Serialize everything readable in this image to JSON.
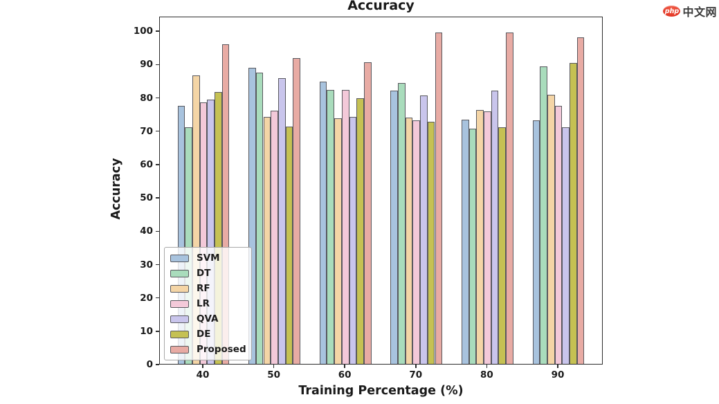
{
  "logo": {
    "badge_text": "php",
    "site_text": "中文网"
  },
  "chart_data": {
    "type": "bar",
    "title": "Accuracy",
    "xlabel": "Training Percentage (%)",
    "ylabel": "Accuracy",
    "categories": [
      "40",
      "50",
      "60",
      "70",
      "80",
      "90"
    ],
    "yticks": [
      0,
      10,
      20,
      30,
      40,
      50,
      60,
      70,
      80,
      90,
      100
    ],
    "ylim": [
      0,
      104.4
    ],
    "grid": false,
    "legend_position": "lower left",
    "bar_edge_color": "#58585e",
    "series": [
      {
        "name": "SVM",
        "color": "#a8c3de",
        "values": [
          77.5,
          88.8,
          84.7,
          82.0,
          73.2,
          73.1
        ]
      },
      {
        "name": "DT",
        "color": "#a9dcbc",
        "values": [
          71.0,
          87.3,
          82.1,
          84.3,
          70.5,
          89.3
        ]
      },
      {
        "name": "RF",
        "color": "#f4d5a6",
        "values": [
          86.6,
          74.2,
          73.6,
          73.9,
          76.2,
          80.7
        ]
      },
      {
        "name": "LR",
        "color": "#f3c9d9",
        "values": [
          78.5,
          76.0,
          82.3,
          73.1,
          75.8,
          77.5
        ]
      },
      {
        "name": "QVA",
        "color": "#c9c5ec",
        "values": [
          79.2,
          85.8,
          74.1,
          80.5,
          81.9,
          71.0
        ]
      },
      {
        "name": "DE",
        "color": "#c5c153",
        "values": [
          81.5,
          71.2,
          79.7,
          72.7,
          71.0,
          90.4
        ]
      },
      {
        "name": "Proposed",
        "color": "#e8aba4",
        "values": [
          95.8,
          91.7,
          90.5,
          99.5,
          99.5,
          98.0
        ]
      }
    ]
  }
}
